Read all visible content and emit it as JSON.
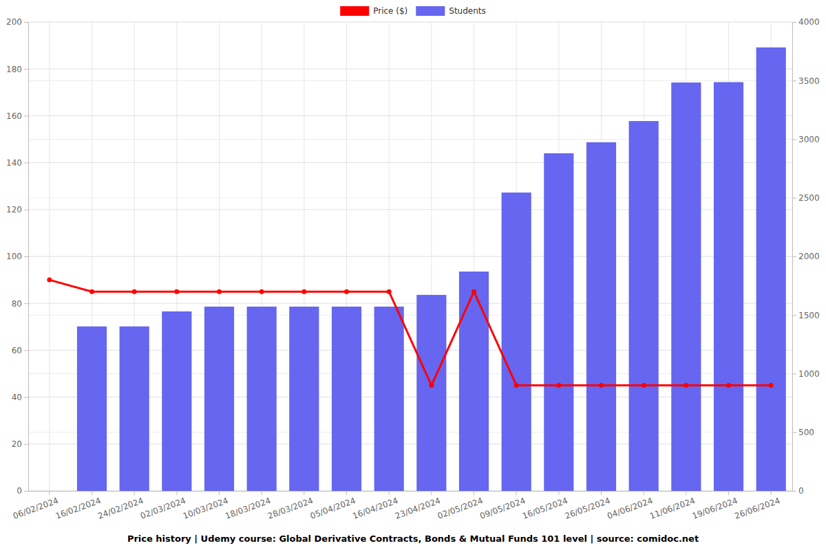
{
  "chart_data": {
    "type": "bar",
    "title": "Price history | Udemy course: Global Derivative Contracts, Bonds & Mutual Funds 101 level | source: comidoc.net",
    "categories": [
      "06/02/2024",
      "16/02/2024",
      "24/02/2024",
      "02/03/2024",
      "10/03/2024",
      "18/03/2024",
      "28/03/2024",
      "05/04/2024",
      "16/04/2024",
      "23/04/2024",
      "02/05/2024",
      "09/05/2024",
      "16/05/2024",
      "26/05/2024",
      "04/06/2024",
      "11/06/2024",
      "19/06/2024",
      "26/06/2024"
    ],
    "series": [
      {
        "name": "Price ($)",
        "color": "#ff0000",
        "type": "line",
        "marker": "circle",
        "axis": "y",
        "values": [
          90,
          85,
          85,
          85,
          85,
          85,
          85,
          85,
          85,
          45,
          85,
          45,
          45,
          45,
          45,
          45,
          45,
          45
        ]
      },
      {
        "name": "Students",
        "color": "#6666f0",
        "type": "bar",
        "axis": "y2",
        "values": [
          null,
          1403,
          1403,
          1531,
          1572,
          1572,
          1572,
          1572,
          1572,
          1672,
          1871,
          2545,
          2880,
          2974,
          3155,
          3484,
          3487,
          3783
        ]
      }
    ],
    "ylim": [
      0,
      200
    ],
    "yticks": [
      0,
      20,
      40,
      60,
      80,
      100,
      120,
      140,
      160,
      180,
      200
    ],
    "y2lim": [
      0,
      4000
    ],
    "y2ticks": [
      0,
      500,
      1000,
      1500,
      2000,
      2500,
      3000,
      3500,
      4000
    ],
    "grid": true,
    "legend": "top"
  }
}
